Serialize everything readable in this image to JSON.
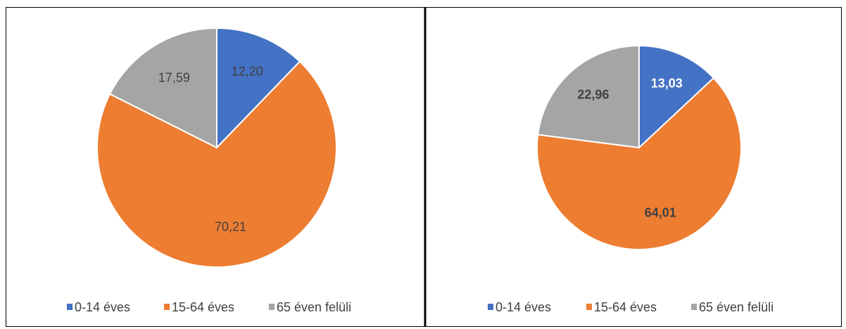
{
  "chart_data": [
    {
      "type": "pie",
      "categories": [
        "0-14 éves",
        "15-64 éves",
        "65 éven felüli"
      ],
      "values": [
        12.2,
        70.21,
        17.59
      ],
      "value_labels": [
        "12,20",
        "70,21",
        "17,59"
      ],
      "colors": [
        "#4472c4",
        "#ed7d31",
        "#a5a5a5"
      ],
      "label_colors": [
        "#404040",
        "#404040",
        "#404040"
      ],
      "label_bold": false,
      "legend": "bottom"
    },
    {
      "type": "pie",
      "categories": [
        "0-14 éves",
        "15-64 éves",
        "65 éven felüli"
      ],
      "values": [
        13.03,
        64.01,
        22.96
      ],
      "value_labels": [
        "13,03",
        "64,01",
        "22,96"
      ],
      "colors": [
        "#4472c4",
        "#ed7d31",
        "#a5a5a5"
      ],
      "label_colors": [
        "#ffffff",
        "#404040",
        "#404040"
      ],
      "label_bold": true,
      "legend": "bottom"
    }
  ]
}
